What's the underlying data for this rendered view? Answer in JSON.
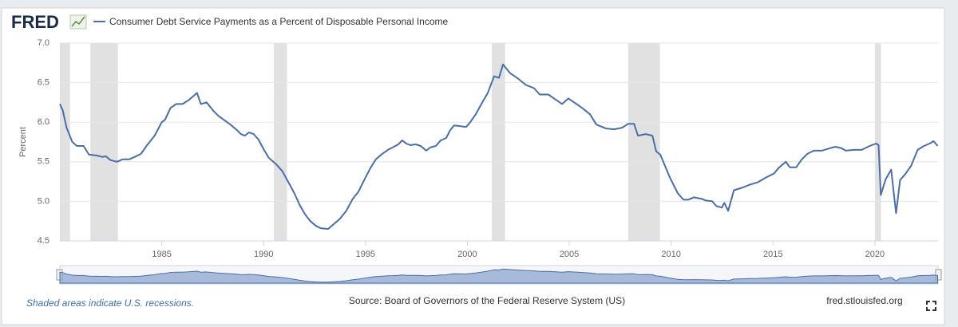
{
  "header": {
    "logo": "FRED"
  },
  "chart_data": {
    "type": "line",
    "ylabel": "Percent",
    "x": [
      1980.0,
      1980.14,
      1980.33,
      1980.61,
      1980.84,
      1981.16,
      1981.43,
      1981.78,
      1982.1,
      1982.25,
      1982.49,
      1982.8,
      1983.08,
      1983.39,
      1983.67,
      1983.98,
      1984.25,
      1984.65,
      1985.0,
      1985.16,
      1985.43,
      1985.71,
      1986.02,
      1986.33,
      1986.73,
      1986.92,
      1987.2,
      1987.51,
      1987.78,
      1988.1,
      1988.37,
      1988.69,
      1988.88,
      1989.08,
      1989.27,
      1989.51,
      1989.75,
      1990.02,
      1990.25,
      1990.61,
      1990.92,
      1991.2,
      1991.51,
      1991.78,
      1992.02,
      1992.29,
      1992.57,
      1992.8,
      1993.16,
      1993.39,
      1993.75,
      1994.06,
      1994.37,
      1994.65,
      1994.96,
      1995.24,
      1995.51,
      1995.82,
      1996.1,
      1996.33,
      1996.61,
      1996.8,
      1997.0,
      1997.2,
      1997.47,
      1997.71,
      1997.98,
      1998.18,
      1998.45,
      1998.69,
      1998.96,
      1999.16,
      1999.35,
      1999.67,
      1999.94,
      2000.14,
      2000.41,
      2000.73,
      2001.0,
      2001.31,
      2001.55,
      2001.75,
      2002.1,
      2002.49,
      2002.88,
      2003.27,
      2003.55,
      2003.98,
      2004.25,
      2004.65,
      2004.96,
      2005.24,
      2005.63,
      2006.02,
      2006.33,
      2006.8,
      2007.2,
      2007.59,
      2007.9,
      2008.18,
      2008.37,
      2008.76,
      2009.08,
      2009.27,
      2009.47,
      2009.94,
      2010.33,
      2010.61,
      2010.84,
      2011.12,
      2011.51,
      2011.71,
      2012.02,
      2012.22,
      2012.49,
      2012.61,
      2012.8,
      2013.08,
      2013.47,
      2013.86,
      2014.25,
      2014.65,
      2015.04,
      2015.31,
      2015.63,
      2015.82,
      2016.14,
      2016.41,
      2016.69,
      2017.0,
      2017.39,
      2017.78,
      2018.06,
      2018.37,
      2018.57,
      2018.96,
      2019.35,
      2019.75,
      2020.06,
      2020.18,
      2020.29,
      2020.53,
      2020.8,
      2021.04,
      2021.24,
      2021.51,
      2021.78,
      2022.1,
      2022.41,
      2022.69,
      2022.88,
      2023.08
    ],
    "series": [
      {
        "name": "Consumer Debt Service Payments as a Percent of Disposable Personal Income",
        "color": "#4a6ea8",
        "values": [
          6.23,
          6.15,
          5.93,
          5.75,
          5.7,
          5.7,
          5.59,
          5.58,
          5.56,
          5.57,
          5.52,
          5.5,
          5.53,
          5.53,
          5.56,
          5.6,
          5.7,
          5.83,
          6.0,
          6.03,
          6.18,
          6.23,
          6.23,
          6.28,
          6.37,
          6.23,
          6.25,
          6.15,
          6.08,
          6.02,
          5.97,
          5.9,
          5.85,
          5.83,
          5.87,
          5.85,
          5.78,
          5.65,
          5.55,
          5.47,
          5.38,
          5.25,
          5.1,
          4.95,
          4.84,
          4.75,
          4.69,
          4.66,
          4.65,
          4.7,
          4.78,
          4.88,
          5.03,
          5.12,
          5.28,
          5.42,
          5.53,
          5.6,
          5.65,
          5.68,
          5.72,
          5.77,
          5.73,
          5.71,
          5.72,
          5.7,
          5.64,
          5.68,
          5.7,
          5.77,
          5.8,
          5.9,
          5.96,
          5.95,
          5.94,
          6.0,
          6.1,
          6.25,
          6.37,
          6.58,
          6.56,
          6.73,
          6.62,
          6.55,
          6.47,
          6.43,
          6.35,
          6.35,
          6.3,
          6.23,
          6.3,
          6.25,
          6.18,
          6.1,
          5.97,
          5.92,
          5.91,
          5.93,
          5.98,
          5.98,
          5.83,
          5.85,
          5.83,
          5.63,
          5.59,
          5.3,
          5.1,
          5.02,
          5.02,
          5.05,
          5.03,
          5.01,
          5.0,
          4.94,
          4.92,
          4.98,
          4.88,
          5.14,
          5.17,
          5.21,
          5.24,
          5.3,
          5.35,
          5.43,
          5.5,
          5.43,
          5.43,
          5.53,
          5.6,
          5.64,
          5.64,
          5.67,
          5.69,
          5.67,
          5.64,
          5.65,
          5.65,
          5.7,
          5.73,
          5.71,
          5.08,
          5.28,
          5.4,
          4.85,
          5.27,
          5.35,
          5.45,
          5.65,
          5.7,
          5.73,
          5.76,
          5.7
        ]
      }
    ],
    "recessions": [
      [
        1980.0,
        1980.5
      ],
      [
        1981.5,
        1982.85
      ],
      [
        1990.5,
        1991.15
      ],
      [
        2001.2,
        2001.85
      ],
      [
        2007.9,
        2009.45
      ],
      [
        2020.0,
        2020.3
      ]
    ],
    "recession_color": "#e1e1e1",
    "xlim": [
      1980,
      2023.1
    ],
    "xticks": [
      1985,
      1990,
      1995,
      2000,
      2005,
      2010,
      2015,
      2020
    ],
    "ylim": [
      4.5,
      7.0
    ],
    "yticks": [
      4.5,
      {
        "value": 5,
        "label": "5.0"
      },
      5.5,
      {
        "value": 6,
        "label": "6.0"
      },
      6.5,
      {
        "value": 7,
        "label": "7.0"
      }
    ],
    "grid": true
  },
  "footer": {
    "note": "Shaded areas indicate U.S. recessions.",
    "source": "Source: Board of Governors of the Federal Reserve System (US)",
    "site": "fred.stlouisfed.org"
  }
}
